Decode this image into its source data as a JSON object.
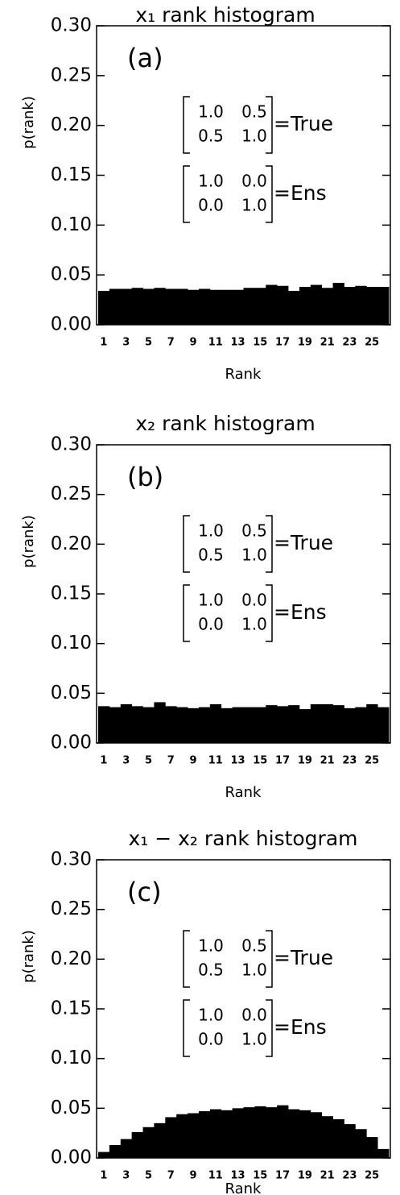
{
  "chart_data": [
    {
      "type": "bar",
      "title": "x₁ rank histogram",
      "x_label": "Rank",
      "y_label": "p(rank)",
      "color": "#000000",
      "categories": [
        "1",
        null,
        "3",
        null,
        "5",
        null,
        "7",
        null,
        "9",
        null,
        "11",
        null,
        "13",
        null,
        "15",
        null,
        "17",
        null,
        "19",
        null,
        "21",
        null,
        "23",
        null,
        "25",
        null
      ],
      "values": [
        0.034,
        0.036,
        0.036,
        0.037,
        0.036,
        0.037,
        0.036,
        0.036,
        0.035,
        0.036,
        0.035,
        0.035,
        0.035,
        0.037,
        0.037,
        0.04,
        0.039,
        0.034,
        0.038,
        0.04,
        0.037,
        0.042,
        0.038,
        0.039,
        0.038,
        0.038
      ],
      "ylim": [
        0,
        0.3
      ],
      "yticks": [
        {
          "value": 0,
          "label": "0.00"
        },
        {
          "value": 0.05,
          "label": "0.05"
        },
        {
          "value": 0.1,
          "label": "0.10"
        },
        {
          "value": 0.15,
          "label": "0.15"
        },
        {
          "value": 0.2,
          "label": "0.20"
        },
        {
          "value": 0.25,
          "label": "0.25"
        },
        {
          "value": 0.3,
          "label": "0.30"
        }
      ],
      "annotations": {
        "panel_label": "(a)",
        "true_matrix": [
          [
            "1.0",
            "0.5"
          ],
          [
            "0.5",
            "1.0"
          ]
        ],
        "true_label": "=True",
        "ens_matrix": [
          [
            "1.0",
            "0.0"
          ],
          [
            "0.0",
            "1.0"
          ]
        ],
        "ens_label": "=Ens"
      }
    },
    {
      "type": "bar",
      "title": "x₂ rank histogram",
      "x_label": "Rank",
      "y_label": "p(rank)",
      "color": "#000000",
      "categories": [
        "1",
        null,
        "3",
        null,
        "5",
        null,
        "7",
        null,
        "9",
        null,
        "11",
        null,
        "13",
        null,
        "15",
        null,
        "17",
        null,
        "19",
        null,
        "21",
        null,
        "23",
        null,
        "25",
        null
      ],
      "values": [
        0.037,
        0.036,
        0.039,
        0.037,
        0.036,
        0.041,
        0.037,
        0.036,
        0.035,
        0.036,
        0.039,
        0.035,
        0.036,
        0.036,
        0.036,
        0.038,
        0.037,
        0.038,
        0.034,
        0.039,
        0.039,
        0.038,
        0.035,
        0.036,
        0.039,
        0.036
      ],
      "ylim": [
        0,
        0.3
      ],
      "yticks": [
        {
          "value": 0,
          "label": "0.00"
        },
        {
          "value": 0.05,
          "label": "0.05"
        },
        {
          "value": 0.1,
          "label": "0.10"
        },
        {
          "value": 0.15,
          "label": "0.15"
        },
        {
          "value": 0.2,
          "label": "0.20"
        },
        {
          "value": 0.25,
          "label": "0.25"
        },
        {
          "value": 0.3,
          "label": "0.30"
        }
      ],
      "annotations": {
        "panel_label": "(b)",
        "true_matrix": [
          [
            "1.0",
            "0.5"
          ],
          [
            "0.5",
            "1.0"
          ]
        ],
        "true_label": "=True",
        "ens_matrix": [
          [
            "1.0",
            "0.0"
          ],
          [
            "0.0",
            "1.0"
          ]
        ],
        "ens_label": "=Ens"
      }
    },
    {
      "type": "bar",
      "title": "x₁ − x₂ rank histogram",
      "x_label": "Rank",
      "y_label": "p(rank)",
      "color": "#000000",
      "categories": [
        "1",
        null,
        "3",
        null,
        "5",
        null,
        "7",
        null,
        "9",
        null,
        "11",
        null,
        "13",
        null,
        "15",
        null,
        "17",
        null,
        "19",
        null,
        "21",
        null,
        "23",
        null,
        "25",
        null
      ],
      "values": [
        0.006,
        0.013,
        0.019,
        0.026,
        0.031,
        0.035,
        0.041,
        0.044,
        0.045,
        0.047,
        0.049,
        0.048,
        0.05,
        0.051,
        0.052,
        0.051,
        0.053,
        0.049,
        0.048,
        0.046,
        0.042,
        0.039,
        0.034,
        0.029,
        0.021,
        0.009
      ],
      "ylim": [
        0,
        0.3
      ],
      "yticks": [
        {
          "value": 0,
          "label": "0.00"
        },
        {
          "value": 0.05,
          "label": "0.05"
        },
        {
          "value": 0.1,
          "label": "0.10"
        },
        {
          "value": 0.15,
          "label": "0.15"
        },
        {
          "value": 0.2,
          "label": "0.20"
        },
        {
          "value": 0.25,
          "label": "0.25"
        },
        {
          "value": 0.3,
          "label": "0.30"
        }
      ],
      "annotations": {
        "panel_label": "(c)",
        "true_matrix": [
          [
            "1.0",
            "0.5"
          ],
          [
            "0.5",
            "1.0"
          ]
        ],
        "true_label": "=True",
        "ens_matrix": [
          [
            "1.0",
            "0.0"
          ],
          [
            "0.0",
            "1.0"
          ]
        ],
        "ens_label": "=Ens"
      }
    }
  ]
}
